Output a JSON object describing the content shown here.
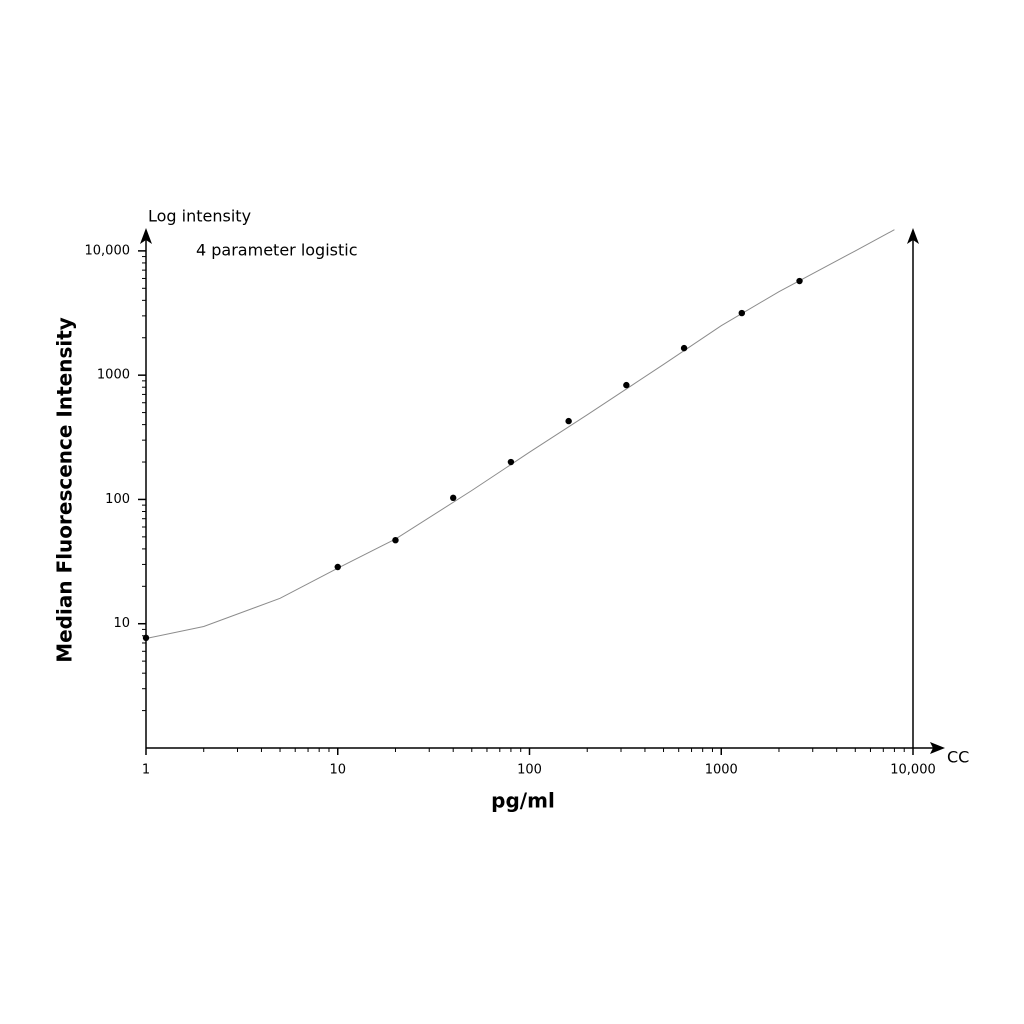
{
  "chart_data": {
    "type": "scatter",
    "y_label_top": "Log intensity",
    "annotation": "4 parameter logistic",
    "x_label_end": "CC",
    "ylabel": "Median Fluorescence Intensity",
    "xlabel": "pg/ml",
    "log_x": true,
    "log_y": true,
    "xlim": [
      1,
      10000
    ],
    "ylim": [
      1,
      15000
    ],
    "xticks": [
      1,
      10,
      100,
      1000,
      {
        "value": 10000,
        "label": "10,000"
      }
    ],
    "yticks": [
      10,
      100,
      1000,
      {
        "value": 10000,
        "label": "10,000"
      }
    ],
    "xminorticks": [
      2,
      3,
      4,
      5,
      6,
      7,
      8,
      9,
      20,
      30,
      40,
      50,
      60,
      70,
      80,
      90,
      200,
      300,
      400,
      500,
      600,
      700,
      800,
      900,
      2000,
      3000,
      4000,
      5000,
      6000,
      7000,
      8000,
      9000
    ],
    "yminorticks": [
      2,
      3,
      4,
      5,
      6,
      7,
      8,
      9,
      20,
      30,
      40,
      50,
      60,
      70,
      80,
      90,
      200,
      300,
      400,
      500,
      600,
      700,
      800,
      900,
      2000,
      3000,
      4000,
      5000,
      6000,
      7000,
      8000,
      9000
    ],
    "points": {
      "color": "#000000",
      "x": [
        1,
        10,
        20,
        40,
        80,
        160,
        320,
        640,
        1280,
        2560
      ],
      "values": [
        7.7,
        28.6,
        47,
        103,
        200,
        427,
        832,
        1650,
        3160,
        5720
      ]
    },
    "fit": {
      "color": "#8c8c8c",
      "x": [
        1,
        2,
        5,
        10,
        20,
        50,
        100,
        200,
        500,
        1000,
        2000,
        5000,
        8000
      ],
      "values": [
        7.6,
        9.5,
        16,
        28,
        48,
        118,
        240,
        480,
        1220,
        2500,
        4700,
        10000,
        14800
      ]
    }
  }
}
